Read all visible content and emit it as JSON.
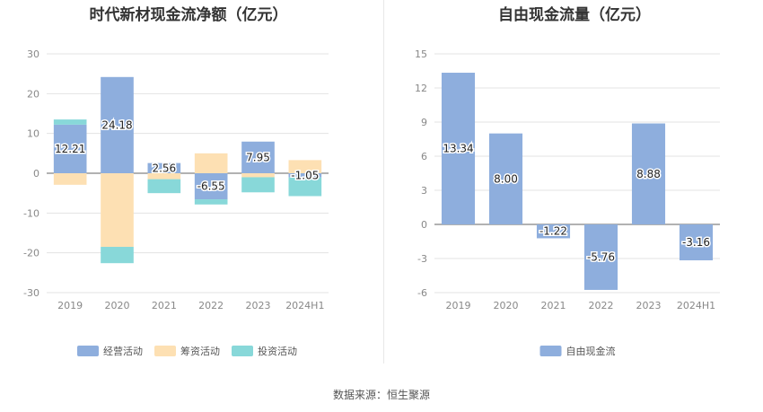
{
  "source_note": "数据来源：恒生聚源",
  "chart_data": [
    {
      "type": "bar",
      "stacked": true,
      "title": "时代新材现金流净额（亿元）",
      "categories": [
        "2019",
        "2020",
        "2021",
        "2022",
        "2023",
        "2024H1"
      ],
      "ylim": [
        -30,
        30
      ],
      "yticks": [
        30,
        20,
        10,
        0,
        -10,
        -20,
        -30
      ],
      "grid": true,
      "legend_position": "bottom",
      "series": [
        {
          "name": "经营活动",
          "color": "#8eaedd",
          "values": [
            12.21,
            24.18,
            2.56,
            -6.55,
            7.95,
            -1.05
          ],
          "labels": [
            "12.21",
            "24.18",
            "2.56",
            "-6.55",
            "7.95",
            "-1.05"
          ]
        },
        {
          "name": "筹资活动",
          "color": "#fde0b3",
          "values": [
            -2.9,
            -18.5,
            -1.5,
            5.0,
            -1.0,
            3.3
          ]
        },
        {
          "name": "投资活动",
          "color": "#88d8d9",
          "values": [
            1.3,
            -4.1,
            -3.5,
            -1.3,
            -3.8,
            -4.7
          ]
        }
      ]
    },
    {
      "type": "bar",
      "title": "自由现金流量（亿元）",
      "categories": [
        "2019",
        "2020",
        "2021",
        "2022",
        "2023",
        "2024H1"
      ],
      "ylim": [
        -6,
        15
      ],
      "yticks": [
        15,
        12,
        9,
        6,
        3,
        0,
        -3,
        -6
      ],
      "grid": true,
      "legend_position": "bottom",
      "series": [
        {
          "name": "自由现金流",
          "color": "#8eaedd",
          "values": [
            13.34,
            8.0,
            -1.22,
            -5.76,
            8.88,
            -3.16
          ],
          "labels": [
            "13.34",
            "8.00",
            "-1.22",
            "-5.76",
            "8.88",
            "-3.16"
          ]
        }
      ]
    }
  ]
}
